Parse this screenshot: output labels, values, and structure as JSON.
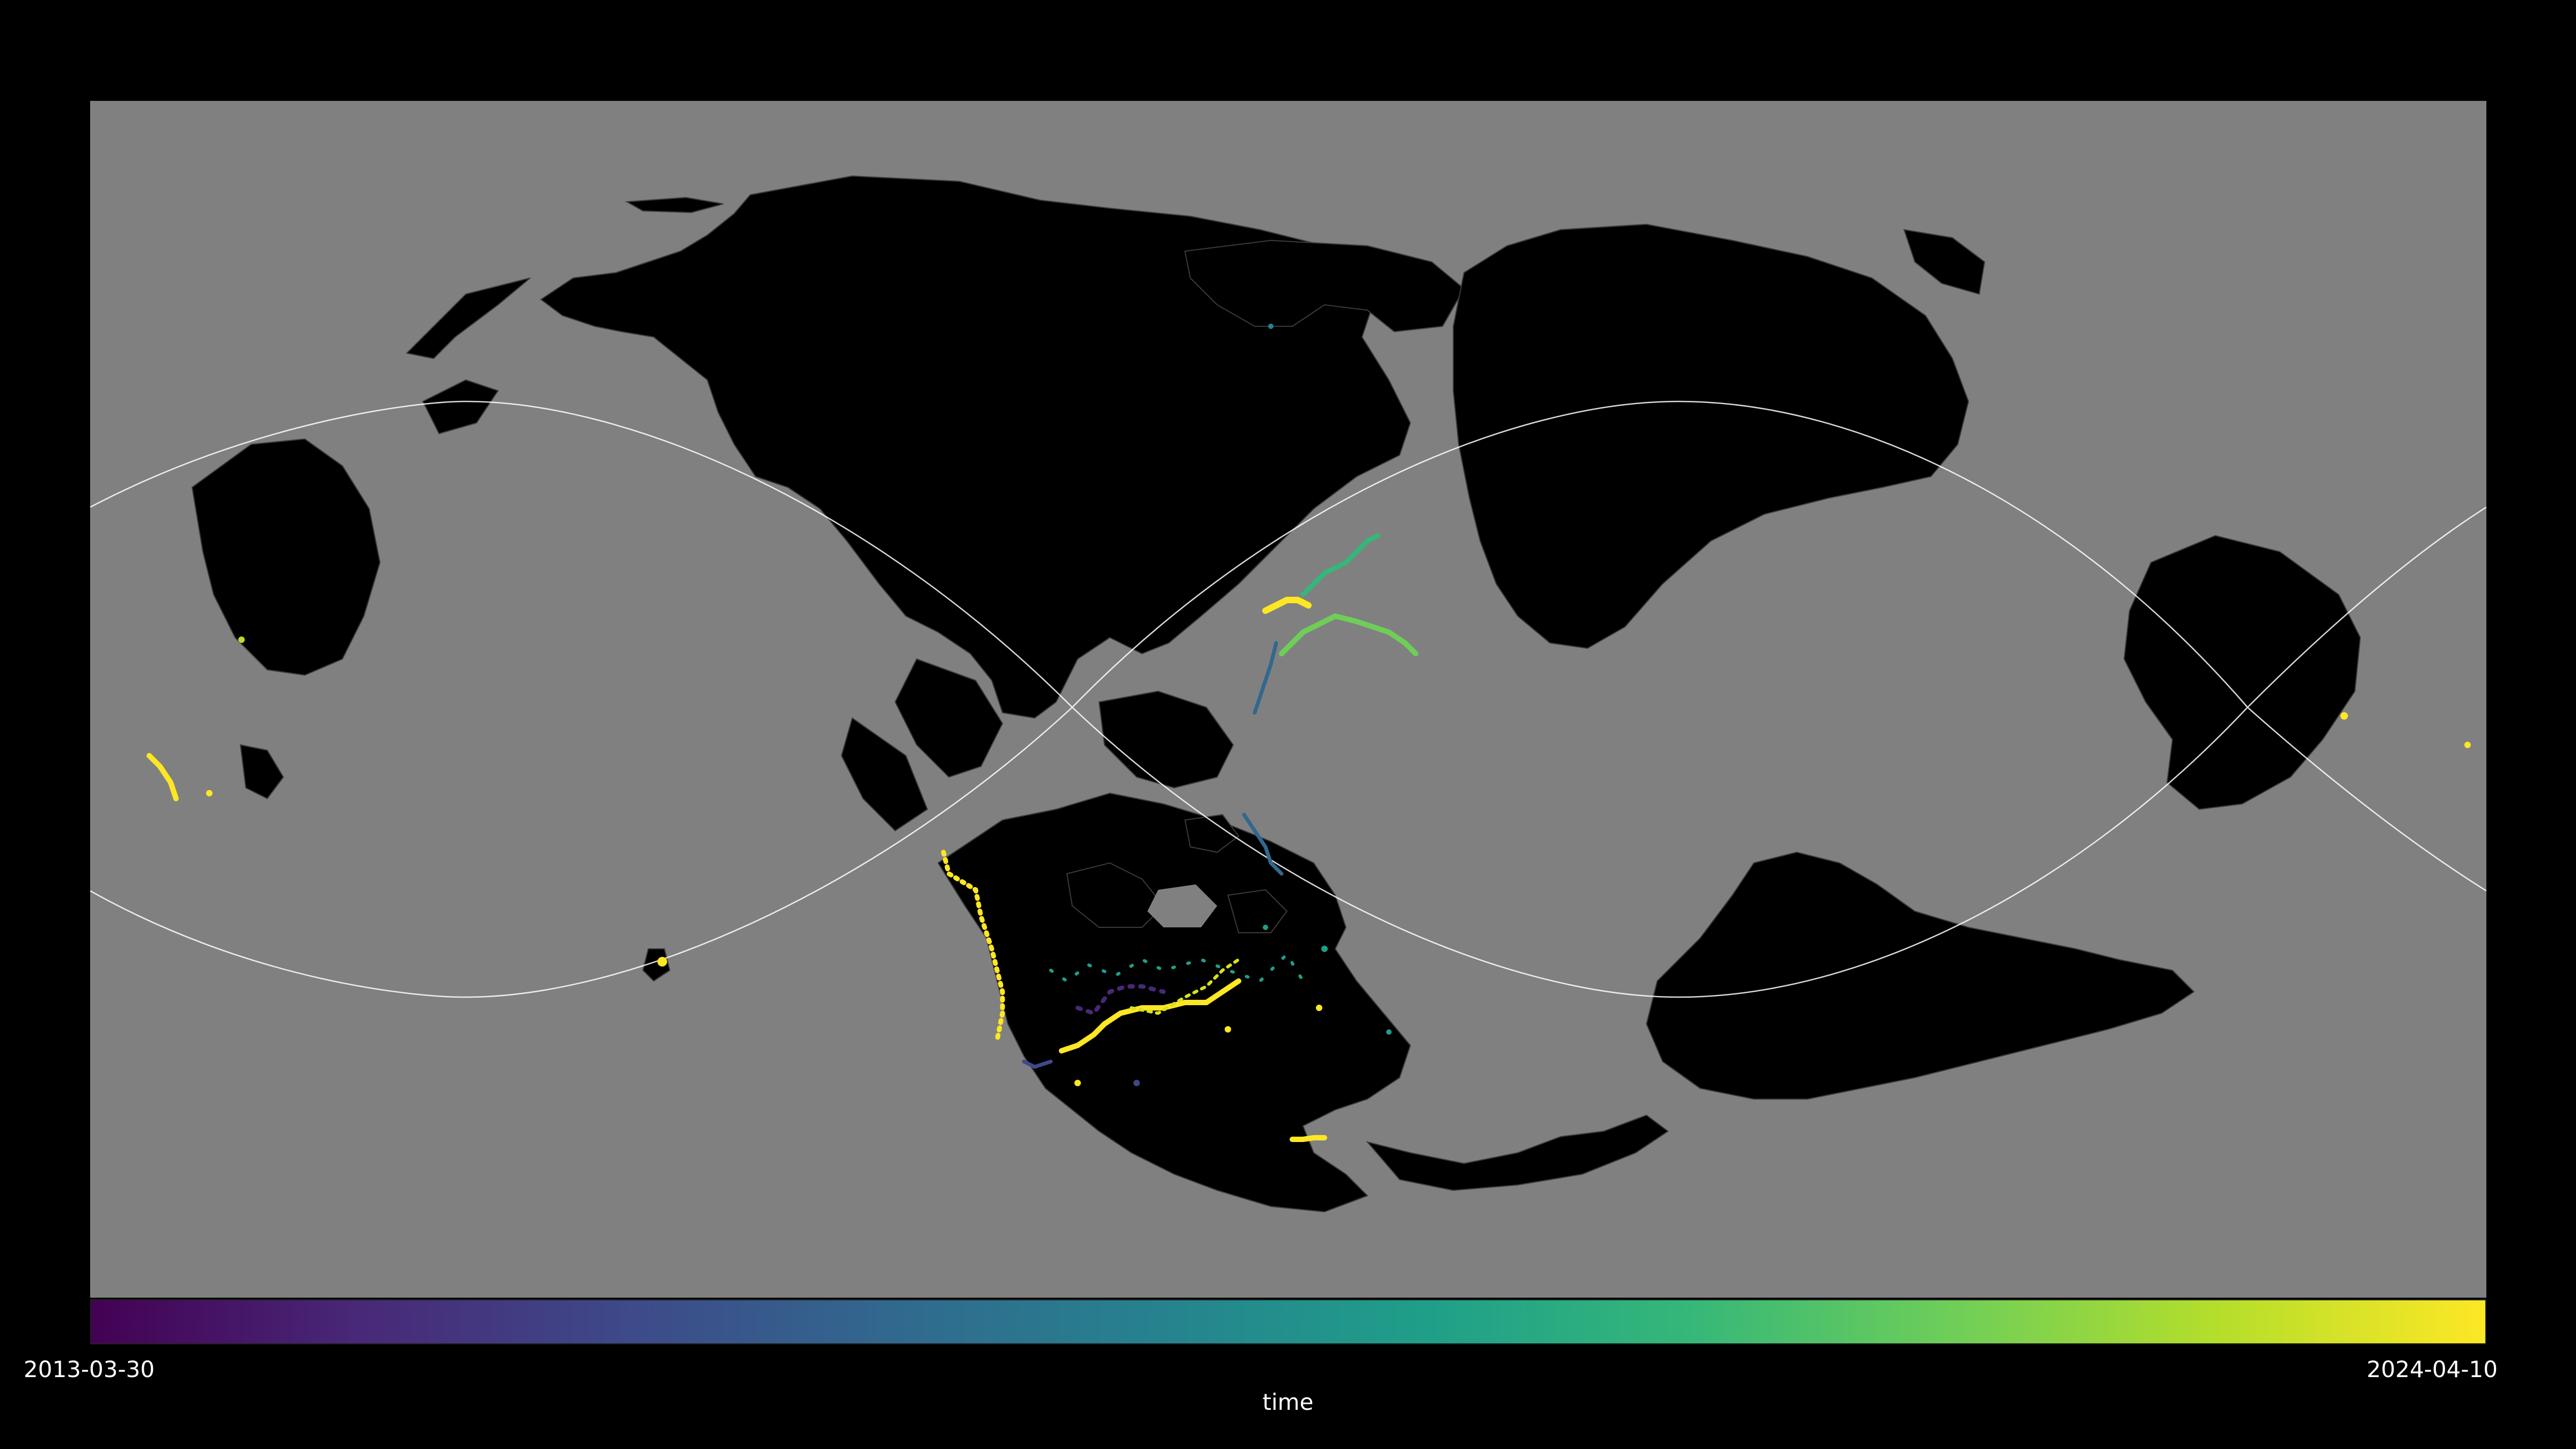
{
  "map": {
    "ocean_color": "#808080",
    "land_color": "#000000",
    "border_color": "#3a3a3a",
    "graticule_color": "#ffffff",
    "background_color": "#000000"
  },
  "colorbar": {
    "colormap": "viridis",
    "min_label": "2013-03-30",
    "max_label": "2024-04-10",
    "title": "time",
    "stops": [
      "#440154",
      "#482878",
      "#3e4989",
      "#31688e",
      "#26828e",
      "#1f9e89",
      "#35b779",
      "#6ece58",
      "#b5de2b",
      "#fde725"
    ]
  }
}
